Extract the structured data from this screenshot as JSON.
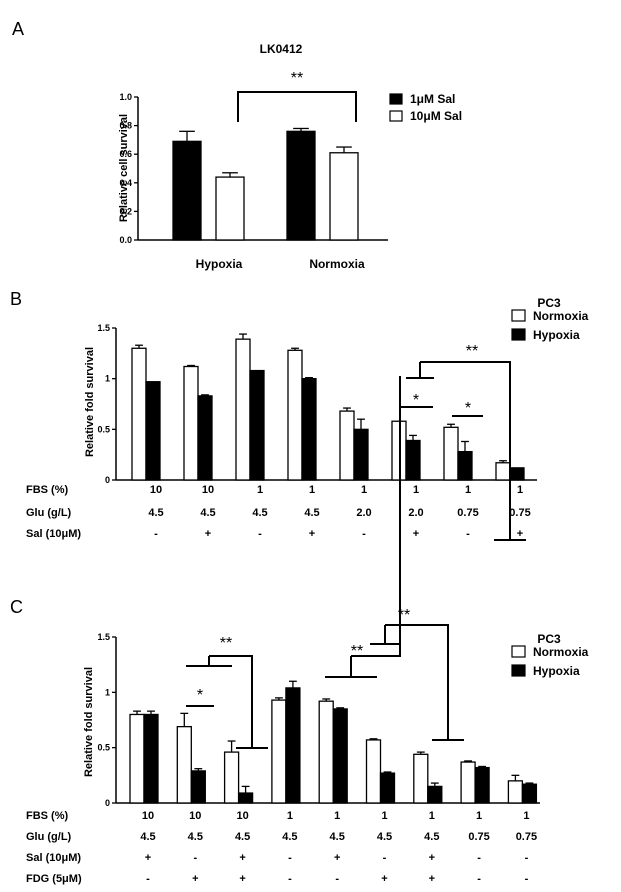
{
  "chart_data": [
    {
      "panel": "A",
      "type": "bar",
      "title": "LK0412",
      "xlabel": "",
      "ylabel": "Relative cell survival",
      "ylim": [
        0,
        1.0
      ],
      "yticks": [
        "0.0",
        "0.2",
        "0.4",
        "0.6",
        "0.8",
        "1.0"
      ],
      "categories": [
        "Hypoxia",
        "Normoxia"
      ],
      "series": [
        {
          "name": "1μM Sal",
          "color": "#000000",
          "values": [
            0.69,
            0.76
          ],
          "errors": [
            0.07,
            0.02
          ]
        },
        {
          "name": "10μM Sal",
          "color": "#ffffff",
          "values": [
            0.44,
            0.61
          ],
          "errors": [
            0.03,
            0.04
          ]
        }
      ],
      "legend": "top-right",
      "significance": [
        {
          "label": "**"
        }
      ]
    },
    {
      "panel": "B",
      "type": "bar",
      "title": "",
      "ylabel": "Relative fold survival",
      "ylim": [
        0,
        1.5
      ],
      "yticks": [
        "0",
        "0.5",
        "1",
        "1.5"
      ],
      "legend_title": "PC3",
      "legend": "top-right",
      "series": [
        {
          "name": "Normoxia",
          "color": "#ffffff",
          "values": [
            1.3,
            1.12,
            1.39,
            1.28,
            0.68,
            0.58,
            0.52,
            0.17
          ],
          "errors": [
            0.03,
            0.01,
            0.05,
            0.02,
            0.03,
            0.0,
            0.03,
            0.02
          ]
        },
        {
          "name": "Hypoxia",
          "color": "#000000",
          "values": [
            0.97,
            0.83,
            1.08,
            1.0,
            0.5,
            0.39,
            0.28,
            0.12
          ],
          "errors": [
            0.0,
            0.01,
            0.0,
            0.01,
            0.1,
            0.05,
            0.1,
            0.0
          ]
        }
      ],
      "conditions": [
        {
          "label": "FBS (%)",
          "values": [
            "10",
            "10",
            "1",
            "1",
            "1",
            "1",
            "1",
            "1"
          ]
        },
        {
          "label": "Glu (g/L)",
          "values": [
            "4.5",
            "4.5",
            "4.5",
            "4.5",
            "2.0",
            "2.0",
            "0.75",
            "0.75"
          ]
        },
        {
          "label": "Sal (10μM)",
          "values": [
            "-",
            "+",
            "-",
            "+",
            "-",
            "+",
            "-",
            "+"
          ]
        }
      ],
      "significance": [
        {
          "label": "*"
        },
        {
          "label": "*"
        },
        {
          "label": "**"
        }
      ]
    },
    {
      "panel": "C",
      "type": "bar",
      "title": "",
      "ylabel": "Relative fold survival",
      "ylim": [
        0,
        1.5
      ],
      "yticks": [
        "0",
        "0.5",
        "1",
        "1.5"
      ],
      "legend_title": "PC3",
      "legend": "top-right",
      "series": [
        {
          "name": "Normoxia",
          "color": "#ffffff",
          "values": [
            0.8,
            0.69,
            0.46,
            0.93,
            0.92,
            0.57,
            0.44,
            0.37,
            0.2
          ],
          "errors": [
            0.03,
            0.12,
            0.1,
            0.02,
            0.02,
            0.01,
            0.02,
            0.01,
            0.05
          ]
        },
        {
          "name": "Hypoxia",
          "color": "#000000",
          "values": [
            0.8,
            0.29,
            0.09,
            1.04,
            0.85,
            0.27,
            0.15,
            0.32,
            0.17
          ],
          "errors": [
            0.03,
            0.02,
            0.06,
            0.06,
            0.01,
            0.01,
            0.03,
            0.01,
            0.01
          ]
        }
      ],
      "conditions": [
        {
          "label": "FBS (%)",
          "values": [
            "10",
            "10",
            "10",
            "1",
            "1",
            "1",
            "1",
            "1",
            "1"
          ]
        },
        {
          "label": "Glu (g/L)",
          "values": [
            "4.5",
            "4.5",
            "4.5",
            "4.5",
            "4.5",
            "4.5",
            "4.5",
            "0.75",
            "0.75"
          ]
        },
        {
          "label": "Sal (10μM)",
          "values": [
            "+",
            "-",
            "+",
            "-",
            "+",
            "-",
            "+",
            "-",
            "-"
          ]
        },
        {
          "label": "FDG (5μM)",
          "values": [
            "-",
            "+",
            "+",
            "-",
            "-",
            "+",
            "+",
            "-",
            "-"
          ]
        }
      ],
      "significance": [
        {
          "label": "*"
        },
        {
          "label": "**"
        },
        {
          "label": "**"
        },
        {
          "label": "**"
        }
      ]
    }
  ]
}
